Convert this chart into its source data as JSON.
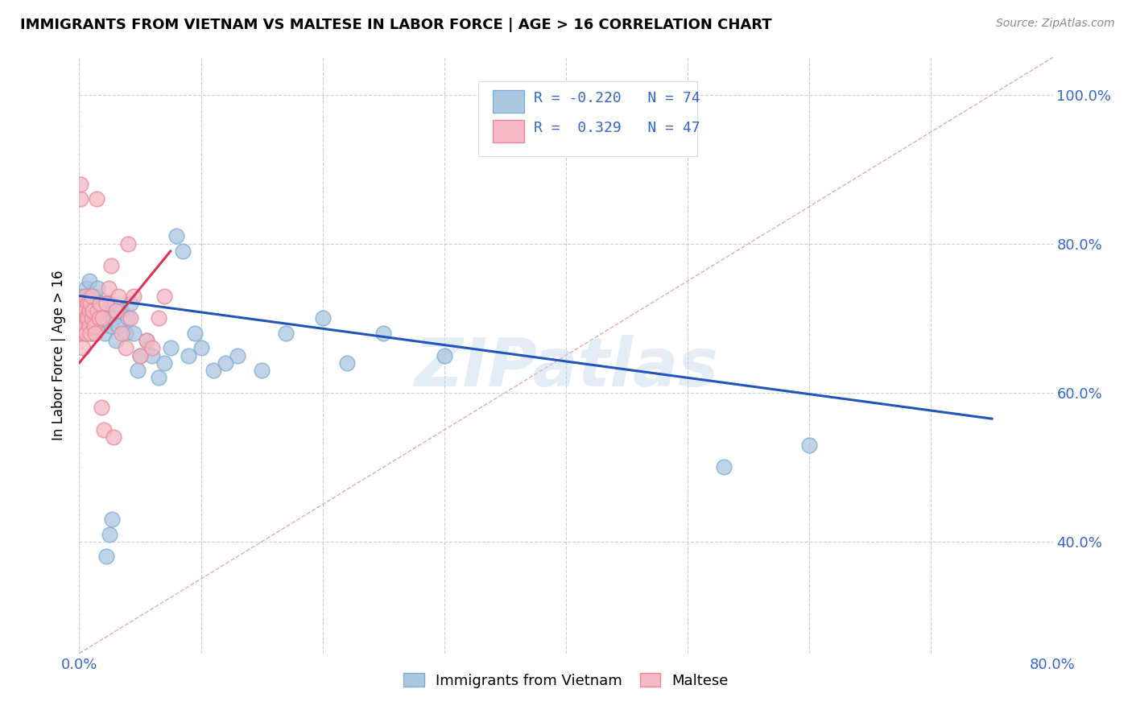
{
  "title": "IMMIGRANTS FROM VIETNAM VS MALTESE IN LABOR FORCE | AGE > 16 CORRELATION CHART",
  "source": "Source: ZipAtlas.com",
  "ylabel": "In Labor Force | Age > 16",
  "watermark": "ZIPatlas",
  "xlim": [
    0.0,
    0.8
  ],
  "ylim": [
    0.25,
    1.05
  ],
  "ytick_positions": [
    0.4,
    0.6,
    0.8,
    1.0
  ],
  "ytick_labels": [
    "40.0%",
    "60.0%",
    "80.0%",
    "100.0%"
  ],
  "xtick_positions": [
    0.0,
    0.1,
    0.2,
    0.3,
    0.4,
    0.5,
    0.6,
    0.7,
    0.8
  ],
  "xtick_labels": [
    "0.0%",
    "",
    "",
    "",
    "",
    "",
    "",
    "",
    "80.0%"
  ],
  "blue_R": -0.22,
  "blue_N": 74,
  "pink_R": 0.329,
  "pink_N": 47,
  "blue_color": "#adc6e0",
  "blue_edge_color": "#7aafd4",
  "blue_line_color": "#2255bb",
  "pink_color": "#f5b8c4",
  "pink_edge_color": "#e88a9a",
  "pink_line_color": "#dd3355",
  "diag_line_color": "#e0a0b0",
  "legend_blue_label": "Immigrants from Vietnam",
  "legend_pink_label": "Maltese",
  "blue_line_x": [
    0.0,
    0.75
  ],
  "blue_line_y": [
    0.73,
    0.565
  ],
  "pink_line_x": [
    0.0,
    0.075
  ],
  "pink_line_y": [
    0.64,
    0.79
  ],
  "diag_line_x": [
    0.0,
    0.8
  ],
  "diag_line_y": [
    0.25,
    1.05
  ]
}
